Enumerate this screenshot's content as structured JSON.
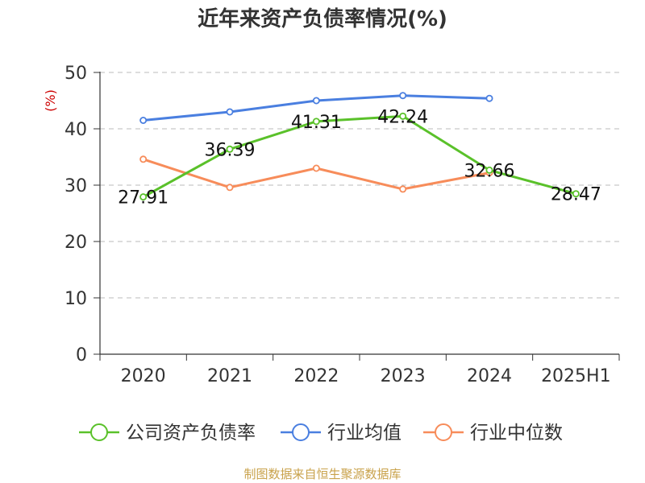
{
  "chart_data": {
    "type": "line",
    "title": "近年来资产负债率情况(%)",
    "ylabel": "(%)",
    "categories": [
      "2020",
      "2021",
      "2022",
      "2023",
      "2024",
      "2025H1"
    ],
    "ylim": [
      0,
      50
    ],
    "yticks": [
      "0",
      "10",
      "20",
      "30",
      "40",
      "50"
    ],
    "grid": true,
    "legend_position": "bottom",
    "series": [
      {
        "name": "公司资产负债率",
        "color": "#5ac12a",
        "values": [
          27.91,
          36.39,
          41.31,
          42.24,
          32.66,
          28.47
        ],
        "labels": [
          "27.91",
          "36.39",
          "41.31",
          "42.24",
          "32.66",
          "28.47"
        ]
      },
      {
        "name": "行业均值",
        "color": "#4a7fe0",
        "values": [
          41.5,
          43.0,
          45.0,
          45.9,
          45.4,
          null
        ]
      },
      {
        "name": "行业中位数",
        "color": "#f78c5a",
        "values": [
          34.6,
          29.6,
          33.0,
          29.3,
          32.2,
          null
        ]
      }
    ]
  },
  "source": "制图数据来自恒生聚源数据库"
}
